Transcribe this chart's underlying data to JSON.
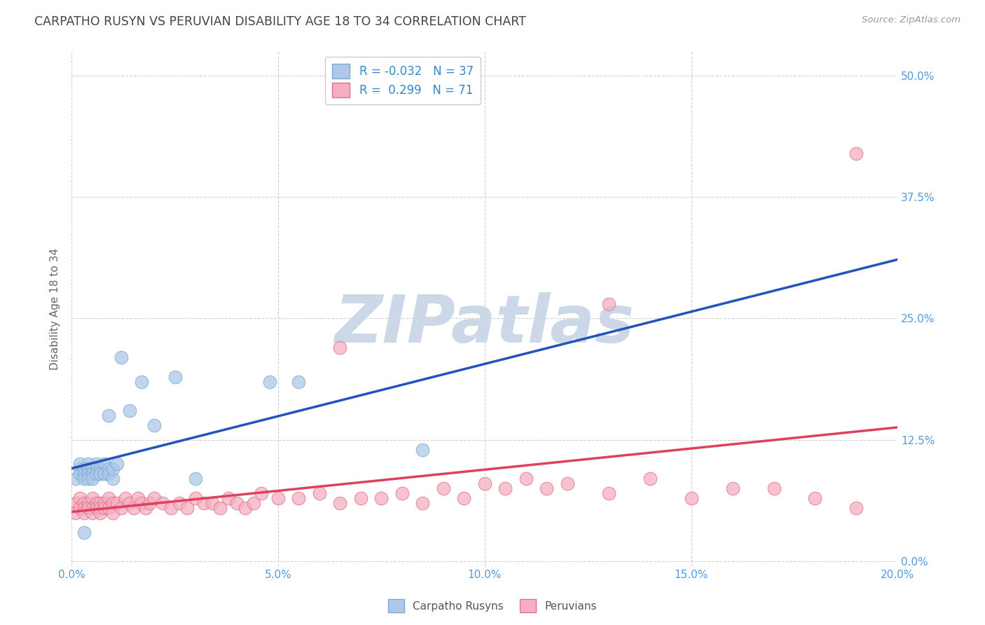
{
  "title": "CARPATHO RUSYN VS PERUVIAN DISABILITY AGE 18 TO 34 CORRELATION CHART",
  "source": "Source: ZipAtlas.com",
  "ylabel": "Disability Age 18 to 34",
  "xmin": 0.0,
  "xmax": 0.2,
  "ymin": -0.005,
  "ymax": 0.525,
  "legend_carpatho_R": "-0.032",
  "legend_carpatho_N": "37",
  "legend_peruvian_R": "0.299",
  "legend_peruvian_N": "71",
  "carpatho_color": "#adc8e8",
  "carpatho_edge": "#7aaad0",
  "peruvian_color": "#f5afc0",
  "peruvian_edge": "#e07090",
  "line_carpatho_color": "#2255bb",
  "line_carpatho_dash_color": "#88aadd",
  "line_peruvian_color": "#e04060",
  "grid_color": "#cccccc",
  "watermark_color": "#ccd8e8",
  "title_color": "#444444",
  "tick_color": "#5599dd",
  "ylabel_color": "#666666",
  "carpatho_x": [
    0.001,
    0.002,
    0.002,
    0.002,
    0.003,
    0.003,
    0.003,
    0.004,
    0.004,
    0.004,
    0.004,
    0.005,
    0.005,
    0.005,
    0.006,
    0.006,
    0.006,
    0.007,
    0.007,
    0.008,
    0.008,
    0.009,
    0.009,
    0.01,
    0.01,
    0.011,
    0.012,
    0.014,
    0.017,
    0.02,
    0.025,
    0.03,
    0.055,
    0.003,
    0.009,
    0.085,
    0.048
  ],
  "carpatho_y": [
    0.085,
    0.095,
    0.09,
    0.1,
    0.095,
    0.09,
    0.085,
    0.1,
    0.095,
    0.09,
    0.085,
    0.095,
    0.09,
    0.085,
    0.095,
    0.1,
    0.09,
    0.095,
    0.09,
    0.1,
    0.09,
    0.095,
    0.09,
    0.085,
    0.095,
    0.1,
    0.21,
    0.155,
    0.185,
    0.14,
    0.19,
    0.085,
    0.185,
    0.03,
    0.15,
    0.115,
    0.185
  ],
  "peruvian_x": [
    0.001,
    0.001,
    0.002,
    0.002,
    0.003,
    0.003,
    0.003,
    0.004,
    0.004,
    0.005,
    0.005,
    0.005,
    0.006,
    0.006,
    0.007,
    0.007,
    0.007,
    0.008,
    0.008,
    0.009,
    0.009,
    0.01,
    0.01,
    0.011,
    0.012,
    0.013,
    0.014,
    0.015,
    0.016,
    0.017,
    0.018,
    0.019,
    0.02,
    0.022,
    0.024,
    0.026,
    0.028,
    0.03,
    0.032,
    0.034,
    0.036,
    0.038,
    0.04,
    0.042,
    0.044,
    0.046,
    0.05,
    0.055,
    0.06,
    0.065,
    0.07,
    0.075,
    0.08,
    0.085,
    0.09,
    0.095,
    0.1,
    0.105,
    0.11,
    0.115,
    0.12,
    0.13,
    0.14,
    0.15,
    0.16,
    0.17,
    0.18,
    0.19,
    0.13,
    0.065,
    0.19
  ],
  "peruvian_y": [
    0.06,
    0.05,
    0.065,
    0.055,
    0.06,
    0.055,
    0.05,
    0.06,
    0.055,
    0.065,
    0.055,
    0.05,
    0.06,
    0.055,
    0.06,
    0.055,
    0.05,
    0.06,
    0.055,
    0.065,
    0.055,
    0.06,
    0.05,
    0.06,
    0.055,
    0.065,
    0.06,
    0.055,
    0.065,
    0.06,
    0.055,
    0.06,
    0.065,
    0.06,
    0.055,
    0.06,
    0.055,
    0.065,
    0.06,
    0.06,
    0.055,
    0.065,
    0.06,
    0.055,
    0.06,
    0.07,
    0.065,
    0.065,
    0.07,
    0.06,
    0.065,
    0.065,
    0.07,
    0.06,
    0.075,
    0.065,
    0.08,
    0.075,
    0.085,
    0.075,
    0.08,
    0.07,
    0.085,
    0.065,
    0.075,
    0.075,
    0.065,
    0.055,
    0.265,
    0.22,
    0.42
  ],
  "watermark_text": "ZIPatlas",
  "background_color": "#ffffff"
}
